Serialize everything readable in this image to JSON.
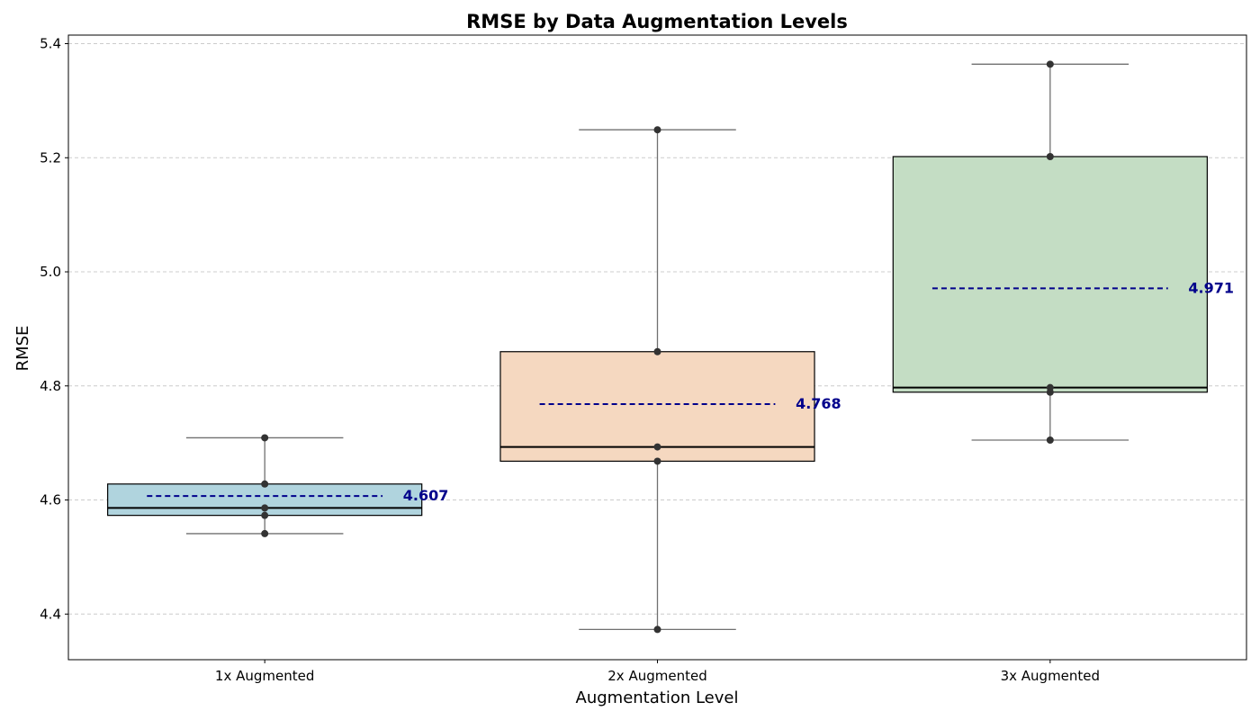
{
  "chart_data": {
    "type": "box",
    "title": "RMSE by Data Augmentation Levels",
    "xlabel": "Augmentation Level",
    "ylabel": "RMSE",
    "ylim": [
      4.32,
      5.415
    ],
    "yticks": [
      "4.4",
      "4.6",
      "4.8",
      "5.0",
      "5.2",
      "5.4"
    ],
    "grid": "y-dashed",
    "categories": [
      "1x Augmented",
      "2x Augmented",
      "3x Augmented"
    ],
    "boxes": [
      {
        "category": "1x Augmented",
        "color": "#b0d4de",
        "q1": 4.573,
        "median": 4.586,
        "q3": 4.628,
        "whisker_low": 4.541,
        "whisker_high": 4.709,
        "points": [
          4.541,
          4.573,
          4.586,
          4.628,
          4.709
        ],
        "mean": 4.607,
        "mean_label": "4.607"
      },
      {
        "category": "2x Augmented",
        "color": "#f5d8c0",
        "q1": 4.668,
        "median": 4.693,
        "q3": 4.86,
        "whisker_low": 4.373,
        "whisker_high": 5.249,
        "points": [
          4.373,
          4.668,
          4.693,
          4.86,
          5.249
        ],
        "mean": 4.768,
        "mean_label": "4.768"
      },
      {
        "category": "3x Augmented",
        "color": "#c4ddc4",
        "q1": 4.789,
        "median": 4.797,
        "q3": 5.202,
        "whisker_low": 4.705,
        "whisker_high": 5.364,
        "points": [
          4.705,
          4.789,
          4.797,
          5.202,
          5.364
        ],
        "mean": 4.971,
        "mean_label": "4.971"
      }
    ],
    "colors": {
      "mean_line": "#00008b",
      "box_edge": "#000000",
      "whisker": "#707070",
      "point": "#333333",
      "grid": "#cccccc"
    }
  }
}
